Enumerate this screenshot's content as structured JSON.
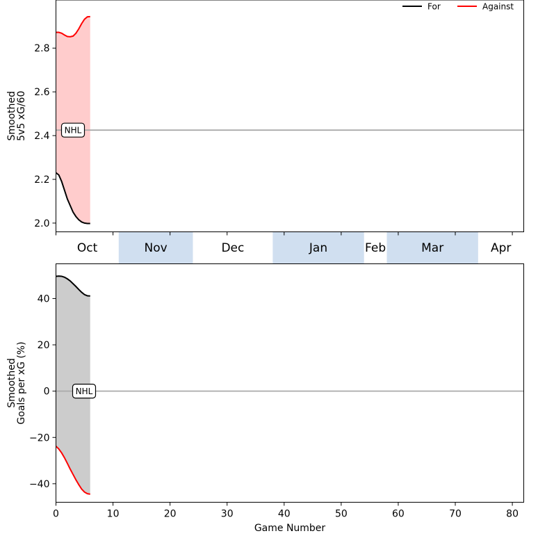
{
  "chart_data": [
    {
      "type": "line",
      "ylabel": [
        "Smoothed",
        "5v5 xG/60"
      ],
      "ylim": [
        1.96,
        3.02
      ],
      "xlim": [
        0,
        82
      ],
      "yticks": [
        2.0,
        2.2,
        2.4,
        2.6,
        2.8
      ],
      "ytick_labels": [
        "2.0",
        "2.2",
        "2.4",
        "2.6",
        "2.8"
      ],
      "reference_line": {
        "label": "NHL",
        "value": 2.425
      },
      "legend": {
        "placement": "top-right",
        "entries": [
          "For",
          "Against"
        ]
      },
      "fill_between": {
        "color": "#ffcccc"
      },
      "series": [
        {
          "name": "For",
          "color": "#000000",
          "x": [
            0,
            0.5,
            1,
            1.5,
            2,
            2.5,
            3,
            3.5,
            4,
            4.5,
            5,
            5.5,
            6
          ],
          "y": [
            2.23,
            2.22,
            2.19,
            2.15,
            2.11,
            2.08,
            2.05,
            2.03,
            2.015,
            2.005,
            2.0,
            1.998,
            1.998
          ]
        },
        {
          "name": "Against",
          "color": "#ff0000",
          "x": [
            0,
            0.5,
            1,
            1.5,
            2,
            2.5,
            3,
            3.5,
            4,
            4.5,
            5,
            5.5,
            6
          ],
          "y": [
            2.872,
            2.872,
            2.868,
            2.86,
            2.853,
            2.852,
            2.855,
            2.868,
            2.888,
            2.912,
            2.932,
            2.943,
            2.944
          ]
        }
      ]
    },
    {
      "type": "line",
      "ylabel": [
        "Smoothed",
        "Goals per xG (%)"
      ],
      "xlabel": "Game Number",
      "ylim": [
        -48,
        55
      ],
      "xlim": [
        0,
        82
      ],
      "yticks": [
        -40,
        -20,
        0,
        20,
        40
      ],
      "ytick_labels": [
        "−40",
        "−20",
        "0",
        "20",
        "40"
      ],
      "xticks": [
        0,
        10,
        20,
        30,
        40,
        50,
        60,
        70,
        80
      ],
      "xtick_labels": [
        "0",
        "10",
        "20",
        "30",
        "40",
        "50",
        "60",
        "70",
        "80"
      ],
      "reference_line": {
        "label": "NHL",
        "value": 0
      },
      "fill_between": {
        "color": "#cccccc"
      },
      "series": [
        {
          "name": "For",
          "color": "#000000",
          "x": [
            0,
            0.5,
            1,
            1.5,
            2,
            2.5,
            3,
            3.5,
            4,
            4.5,
            5,
            5.5,
            6
          ],
          "y": [
            49.6,
            49.7,
            49.6,
            49.2,
            48.5,
            47.6,
            46.4,
            45.2,
            43.9,
            42.7,
            41.7,
            41.2,
            41.1
          ]
        },
        {
          "name": "Against",
          "color": "#ff0000",
          "x": [
            0,
            0.5,
            1,
            1.5,
            2,
            2.5,
            3,
            3.5,
            4,
            4.5,
            5,
            5.5,
            6
          ],
          "y": [
            -23.8,
            -25.0,
            -26.7,
            -28.8,
            -31.2,
            -33.7,
            -36.0,
            -38.3,
            -40.4,
            -42.3,
            -43.6,
            -44.3,
            -44.5
          ]
        }
      ]
    }
  ],
  "months": [
    {
      "label": "Oct",
      "start": 0,
      "end": 11,
      "shaded": false
    },
    {
      "label": "Nov",
      "start": 11,
      "end": 24,
      "shaded": true
    },
    {
      "label": "Dec",
      "start": 24,
      "end": 38,
      "shaded": false
    },
    {
      "label": "Jan",
      "start": 38,
      "end": 54,
      "shaded": true
    },
    {
      "label": "Feb",
      "start": 54,
      "end": 58,
      "shaded": false
    },
    {
      "label": "Mar",
      "start": 58,
      "end": 74,
      "shaded": true
    },
    {
      "label": "Apr",
      "start": 74,
      "end": 82,
      "shaded": false
    }
  ],
  "month_band_color": "#d0dff0"
}
